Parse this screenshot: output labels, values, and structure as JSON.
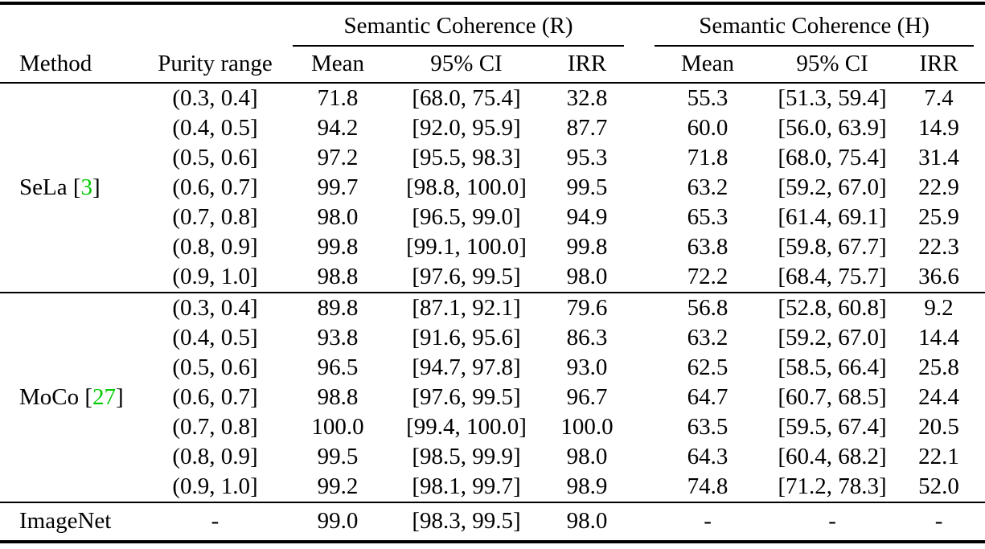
{
  "colors": {
    "background": "#ffffff",
    "text": "#000000",
    "rule": "#000000",
    "citation_green": "#00cc00"
  },
  "table": {
    "groups": {
      "r": "Semantic Coherence (R)",
      "h": "Semantic Coherence (H)"
    },
    "headers": {
      "method": "Method",
      "purity": "Purity range",
      "mean": "Mean",
      "ci": "95% CI",
      "irr": "IRR"
    },
    "sections": [
      {
        "method_prefix": "SeLa [",
        "citation": "3",
        "method_suffix": "]",
        "rows": [
          {
            "purity": "(0.3, 0.4]",
            "r_mean": "71.8",
            "r_ci": "[68.0, 75.4]",
            "r_irr": "32.8",
            "h_mean": "55.3",
            "h_ci": "[51.3, 59.4]",
            "h_irr": "7.4"
          },
          {
            "purity": "(0.4, 0.5]",
            "r_mean": "94.2",
            "r_ci": "[92.0, 95.9]",
            "r_irr": "87.7",
            "h_mean": "60.0",
            "h_ci": "[56.0, 63.9]",
            "h_irr": "14.9"
          },
          {
            "purity": "(0.5, 0.6]",
            "r_mean": "97.2",
            "r_ci": "[95.5, 98.3]",
            "r_irr": "95.3",
            "h_mean": "71.8",
            "h_ci": "[68.0, 75.4]",
            "h_irr": "31.4"
          },
          {
            "purity": "(0.6, 0.7]",
            "r_mean": "99.7",
            "r_ci": "[98.8, 100.0]",
            "r_irr": "99.5",
            "h_mean": "63.2",
            "h_ci": "[59.2, 67.0]",
            "h_irr": "22.9"
          },
          {
            "purity": "(0.7, 0.8]",
            "r_mean": "98.0",
            "r_ci": "[96.5, 99.0]",
            "r_irr": "94.9",
            "h_mean": "65.3",
            "h_ci": "[61.4, 69.1]",
            "h_irr": "25.9"
          },
          {
            "purity": "(0.8, 0.9]",
            "r_mean": "99.8",
            "r_ci": "[99.1, 100.0]",
            "r_irr": "99.8",
            "h_mean": "63.8",
            "h_ci": "[59.8, 67.7]",
            "h_irr": "22.3"
          },
          {
            "purity": "(0.9, 1.0]",
            "r_mean": "98.8",
            "r_ci": "[97.6, 99.5]",
            "r_irr": "98.0",
            "h_mean": "72.2",
            "h_ci": "[68.4, 75.7]",
            "h_irr": "36.6"
          }
        ]
      },
      {
        "method_prefix": "MoCo [",
        "citation": "27",
        "method_suffix": "]",
        "rows": [
          {
            "purity": "(0.3, 0.4]",
            "r_mean": "89.8",
            "r_ci": "[87.1, 92.1]",
            "r_irr": "79.6",
            "h_mean": "56.8",
            "h_ci": "[52.8, 60.8]",
            "h_irr": "9.2"
          },
          {
            "purity": "(0.4, 0.5]",
            "r_mean": "93.8",
            "r_ci": "[91.6, 95.6]",
            "r_irr": "86.3",
            "h_mean": "63.2",
            "h_ci": "[59.2, 67.0]",
            "h_irr": "14.4"
          },
          {
            "purity": "(0.5, 0.6]",
            "r_mean": "96.5",
            "r_ci": "[94.7, 97.8]",
            "r_irr": "93.0",
            "h_mean": "62.5",
            "h_ci": "[58.5, 66.4]",
            "h_irr": "25.8"
          },
          {
            "purity": "(0.6, 0.7]",
            "r_mean": "98.8",
            "r_ci": "[97.6, 99.5]",
            "r_irr": "96.7",
            "h_mean": "64.7",
            "h_ci": "[60.7, 68.5]",
            "h_irr": "24.4"
          },
          {
            "purity": "(0.7, 0.8]",
            "r_mean": "100.0",
            "r_ci": "[99.4, 100.0]",
            "r_irr": "100.0",
            "h_mean": "63.5",
            "h_ci": "[59.5, 67.4]",
            "h_irr": "20.5"
          },
          {
            "purity": "(0.8, 0.9]",
            "r_mean": "99.5",
            "r_ci": "[98.5, 99.9]",
            "r_irr": "98.0",
            "h_mean": "64.3",
            "h_ci": "[60.4, 68.2]",
            "h_irr": "22.1"
          },
          {
            "purity": "(0.9, 1.0]",
            "r_mean": "99.2",
            "r_ci": "[98.1, 99.7]",
            "r_irr": "98.9",
            "h_mean": "74.8",
            "h_ci": "[71.2, 78.3]",
            "h_irr": "52.0"
          }
        ]
      }
    ],
    "footer": {
      "method": "ImageNet",
      "purity": "-",
      "r_mean": "99.0",
      "r_ci": "[98.3, 99.5]",
      "r_irr": "98.0",
      "h_mean": "-",
      "h_ci": "-",
      "h_irr": "-"
    }
  }
}
